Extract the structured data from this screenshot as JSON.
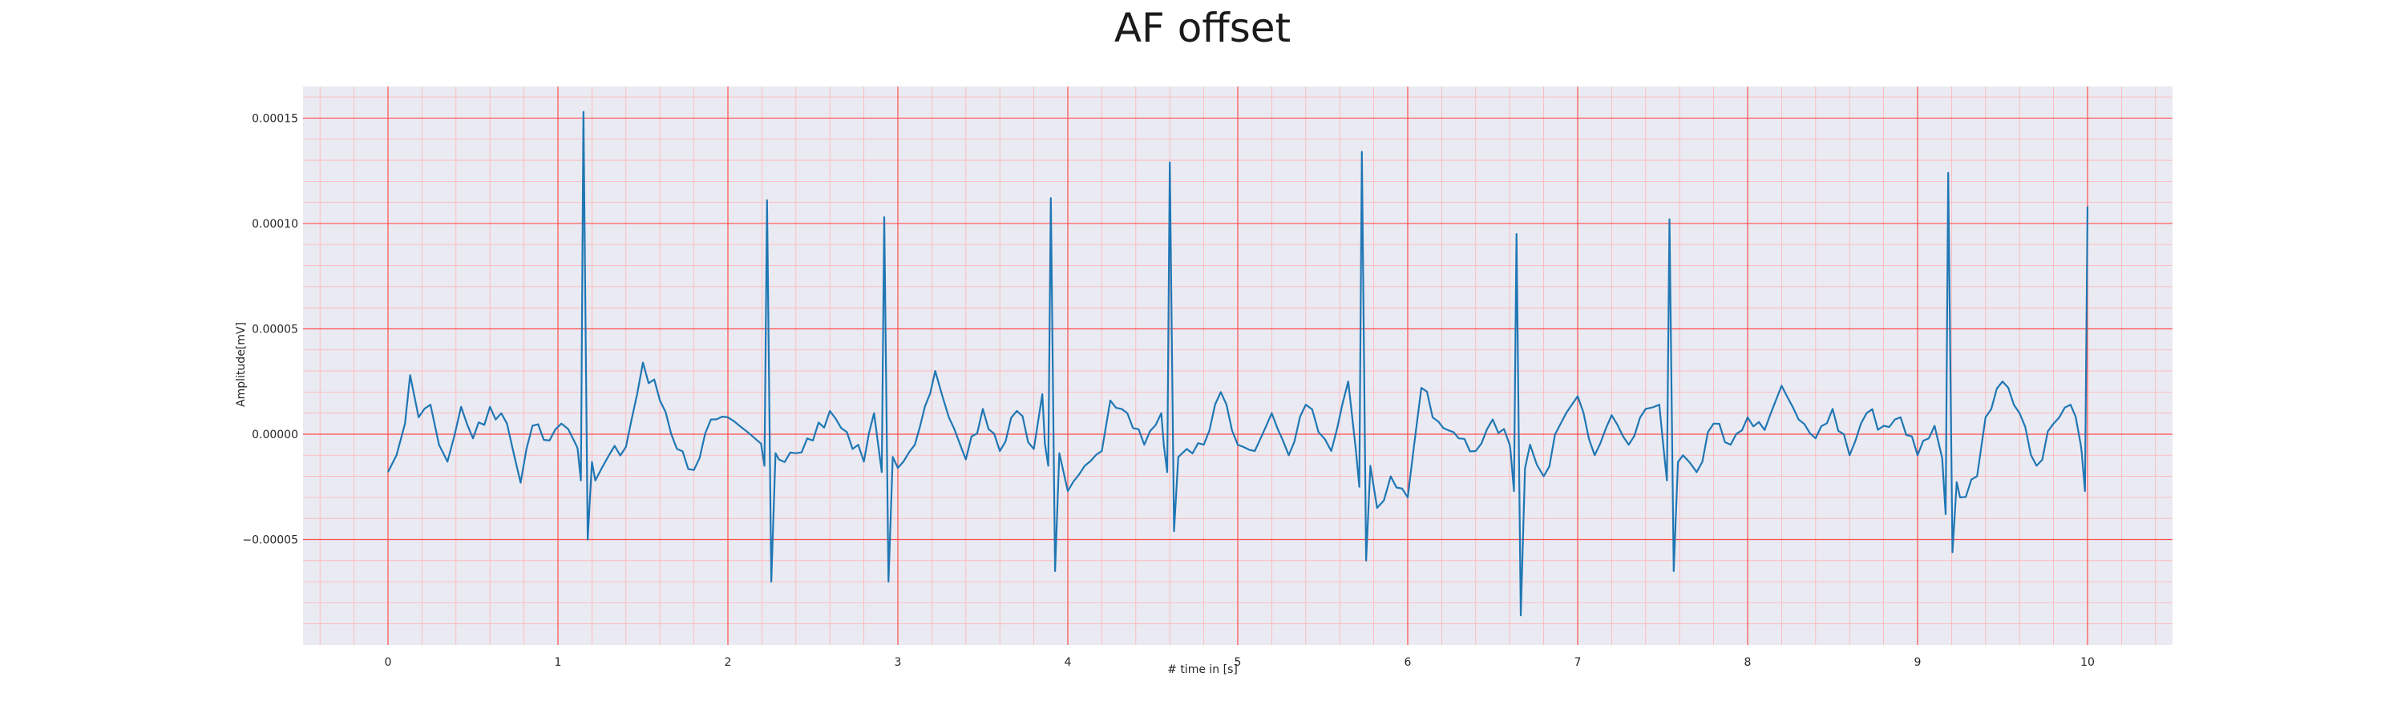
{
  "chart_data": {
    "type": "line",
    "title": "AF offset",
    "xlabel": "# time in [s]",
    "ylabel": "Amplitude[mV]",
    "xlim": [
      -0.5,
      10.5
    ],
    "ylim": [
      -0.0001,
      0.000165
    ],
    "x_ticks": [
      0,
      1,
      2,
      3,
      4,
      5,
      6,
      7,
      8,
      9,
      10
    ],
    "x_tick_labels": [
      "0",
      "1",
      "2",
      "3",
      "4",
      "5",
      "6",
      "7",
      "8",
      "9",
      "10"
    ],
    "y_ticks": [
      -5e-05,
      0,
      5e-05,
      0.0001,
      0.00015
    ],
    "y_tick_labels": [
      "−0.00005",
      "0.00000",
      "0.00005",
      "0.00010",
      "0.00015"
    ],
    "grid": true,
    "colors": {
      "line": "#1f77b4",
      "plot_bg": "#eaeaf2",
      "major_grid": "#ff4d4d",
      "minor_grid": "#ffb3b3"
    },
    "beats": [
      {
        "t": 1.15,
        "r": 0.000153,
        "q": -2.2e-05,
        "s": -5e-05
      },
      {
        "t": 2.23,
        "r": 0.000111,
        "q": -1.5e-05,
        "s": -7e-05
      },
      {
        "t": 2.92,
        "r": 0.000103,
        "q": -1.8e-05,
        "s": -7e-05
      },
      {
        "t": 3.9,
        "r": 0.000112,
        "q": -1.5e-05,
        "s": -6.5e-05
      },
      {
        "t": 4.6,
        "r": 0.000129,
        "q": -1.8e-05,
        "s": -4.6e-05
      },
      {
        "t": 5.73,
        "r": 0.000134,
        "q": -2.5e-05,
        "s": -6e-05
      },
      {
        "t": 6.64,
        "r": 9.5e-05,
        "q": -2.7e-05,
        "s": -8.6e-05
      },
      {
        "t": 7.54,
        "r": 0.000102,
        "q": -2.2e-05,
        "s": -6.5e-05
      },
      {
        "t": 9.18,
        "r": 0.000124,
        "q": -3.8e-05,
        "s": -5.6e-05
      },
      {
        "t": 10.0,
        "r": 0.000108,
        "q": -2.7e-05,
        "s": 0
      }
    ],
    "baseline_points": [
      [
        0.0,
        -1.8e-05
      ],
      [
        0.05,
        -1e-05
      ],
      [
        0.1,
        5e-06
      ],
      [
        0.13,
        2.8e-05
      ],
      [
        0.18,
        8e-06
      ],
      [
        0.25,
        1.4e-05
      ],
      [
        0.3,
        -5e-06
      ],
      [
        0.35,
        -1.3e-05
      ],
      [
        0.43,
        1.3e-05
      ],
      [
        0.5,
        -2e-06
      ],
      [
        0.6,
        1.3e-05
      ],
      [
        0.7,
        5e-06
      ],
      [
        0.78,
        -2.3e-05
      ],
      [
        0.85,
        4e-06
      ],
      [
        0.95,
        -3e-06
      ],
      [
        1.02,
        5e-06
      ],
      [
        1.1,
        -4e-06
      ],
      [
        1.22,
        -2.2e-05
      ],
      [
        1.3,
        -1e-05
      ],
      [
        1.4,
        -6e-06
      ],
      [
        1.5,
        3.4e-05
      ],
      [
        1.6,
        1.6e-05
      ],
      [
        1.7,
        -7e-06
      ],
      [
        1.8,
        -1.7e-05
      ],
      [
        1.9,
        7e-06
      ],
      [
        2.0,
        8e-06
      ],
      [
        2.1,
        2e-06
      ],
      [
        2.3,
        -1.2e-05
      ],
      [
        2.4,
        -9e-06
      ],
      [
        2.5,
        -3e-06
      ],
      [
        2.6,
        1.1e-05
      ],
      [
        2.7,
        1e-06
      ],
      [
        2.8,
        -1.3e-05
      ],
      [
        2.86,
        1e-05
      ],
      [
        3.0,
        -1.6e-05
      ],
      [
        3.1,
        -5e-06
      ],
      [
        3.22,
        3e-05
      ],
      [
        3.3,
        8e-06
      ],
      [
        3.4,
        -1.2e-05
      ],
      [
        3.5,
        1.2e-05
      ],
      [
        3.6,
        -8e-06
      ],
      [
        3.7,
        1.1e-05
      ],
      [
        3.8,
        -7e-06
      ],
      [
        3.85,
        1.9e-05
      ],
      [
        4.0,
        -2.7e-05
      ],
      [
        4.1,
        -1.5e-05
      ],
      [
        4.2,
        -8e-06
      ],
      [
        4.25,
        1.6e-05
      ],
      [
        4.35,
        1e-05
      ],
      [
        4.45,
        -5e-06
      ],
      [
        4.55,
        1e-05
      ],
      [
        4.7,
        -7e-06
      ],
      [
        4.8,
        -5e-06
      ],
      [
        4.9,
        2e-05
      ],
      [
        5.0,
        -5e-06
      ],
      [
        5.1,
        -8e-06
      ],
      [
        5.2,
        1e-05
      ],
      [
        5.3,
        -1e-05
      ],
      [
        5.4,
        1.4e-05
      ],
      [
        5.55,
        -8e-06
      ],
      [
        5.65,
        2.5e-05
      ],
      [
        5.82,
        -3.5e-05
      ],
      [
        5.9,
        -2e-05
      ],
      [
        6.0,
        -3e-05
      ],
      [
        6.08,
        2.2e-05
      ],
      [
        6.18,
        6e-06
      ],
      [
        6.3,
        -2e-06
      ],
      [
        6.4,
        -8e-06
      ],
      [
        6.5,
        7e-06
      ],
      [
        6.6,
        -5e-06
      ],
      [
        6.72,
        -5e-06
      ],
      [
        6.8,
        -2e-05
      ],
      [
        6.9,
        5e-06
      ],
      [
        7.0,
        1.8e-05
      ],
      [
        7.1,
        -1e-05
      ],
      [
        7.2,
        9e-06
      ],
      [
        7.3,
        -5e-06
      ],
      [
        7.4,
        1.2e-05
      ],
      [
        7.48,
        1.4e-05
      ],
      [
        7.62,
        -1e-05
      ],
      [
        7.7,
        -1.8e-05
      ],
      [
        7.8,
        5e-06
      ],
      [
        7.9,
        -5e-06
      ],
      [
        8.0,
        8e-06
      ],
      [
        8.1,
        2e-06
      ],
      [
        8.2,
        2.3e-05
      ],
      [
        8.3,
        7e-06
      ],
      [
        8.4,
        -2e-06
      ],
      [
        8.5,
        1.2e-05
      ],
      [
        8.6,
        -1e-05
      ],
      [
        8.7,
        1e-05
      ],
      [
        8.8,
        4e-06
      ],
      [
        8.9,
        8e-06
      ],
      [
        9.0,
        -1e-05
      ],
      [
        9.1,
        4e-06
      ],
      [
        9.25,
        -3e-05
      ],
      [
        9.35,
        -2e-05
      ],
      [
        9.4,
        8e-06
      ],
      [
        9.5,
        2.5e-05
      ],
      [
        9.6,
        1e-05
      ],
      [
        9.7,
        -1.5e-05
      ],
      [
        9.8,
        5e-06
      ],
      [
        9.9,
        1.4e-05
      ],
      [
        9.96,
        -5e-06
      ]
    ]
  }
}
